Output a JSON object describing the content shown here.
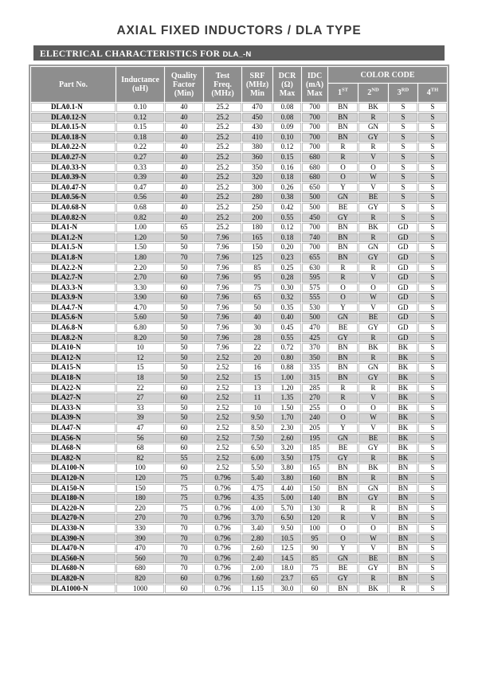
{
  "page": {
    "title": "AXIAL FIXED INDUCTORS / DLA TYPE",
    "section_label": "ELECTRICAL CHARACTERISTICS FOR ",
    "section_part": "DLA_-N"
  },
  "colors": {
    "section_bar_bg": "#5c5c5c",
    "header_cell_bg": "#8e8e8e",
    "stripe_row_bg": "#d3d3d3"
  },
  "table": {
    "headers": {
      "part_no": "Part No.",
      "inductance": "Inductance\n(uH)",
      "quality": "Quality\nFactor\n(Min)",
      "test_freq": "Test\nFreq.\n(MHz)",
      "srf": "SRF\n(MHz)\nMin",
      "dcr": "DCR\n(Ω)\nMax",
      "idc": "IDC\n(mA)\nMax",
      "color_code": "COLOR CODE",
      "color_sub": [
        {
          "base": "1",
          "sup": "ST"
        },
        {
          "base": "2",
          "sup": "ND"
        },
        {
          "base": "3",
          "sup": "RD"
        },
        {
          "base": "4",
          "sup": "TH"
        }
      ]
    },
    "rows": [
      [
        "DLA0.1-N",
        "0.10",
        "40",
        "25.2",
        "470",
        "0.08",
        "700",
        "BN",
        "BK",
        "S",
        "S"
      ],
      [
        "DLA0.12-N",
        "0.12",
        "40",
        "25.2",
        "450",
        "0.08",
        "700",
        "BN",
        "R",
        "S",
        "S"
      ],
      [
        "DLA0.15-N",
        "0.15",
        "40",
        "25.2",
        "430",
        "0.09",
        "700",
        "BN",
        "GN",
        "S",
        "S"
      ],
      [
        "DLA0.18-N",
        "0.18",
        "40",
        "25.2",
        "410",
        "0.10",
        "700",
        "BN",
        "GY",
        "S",
        "S"
      ],
      [
        "DLA0.22-N",
        "0.22",
        "40",
        "25.2",
        "380",
        "0.12",
        "700",
        "R",
        "R",
        "S",
        "S"
      ],
      [
        "DLA0.27-N",
        "0.27",
        "40",
        "25.2",
        "360",
        "0.15",
        "680",
        "R",
        "V",
        "S",
        "S"
      ],
      [
        "DLA0.33-N",
        "0.33",
        "40",
        "25.2",
        "350",
        "0.16",
        "680",
        "O",
        "O",
        "S",
        "S"
      ],
      [
        "DLA0.39-N",
        "0.39",
        "40",
        "25.2",
        "320",
        "0.18",
        "680",
        "O",
        "W",
        "S",
        "S"
      ],
      [
        "DLA0.47-N",
        "0.47",
        "40",
        "25.2",
        "300",
        "0.26",
        "650",
        "Y",
        "V",
        "S",
        "S"
      ],
      [
        "DLA0.56-N",
        "0.56",
        "40",
        "25.2",
        "280",
        "0.38",
        "500",
        "GN",
        "BE",
        "S",
        "S"
      ],
      [
        "DLA0.68-N",
        "0.68",
        "40",
        "25.2",
        "250",
        "0.42",
        "500",
        "BE",
        "GY",
        "S",
        "S"
      ],
      [
        "DLA0.82-N",
        "0.82",
        "40",
        "25.2",
        "200",
        "0.55",
        "450",
        "GY",
        "R",
        "S",
        "S"
      ],
      [
        "DLA1-N",
        "1.00",
        "65",
        "25.2",
        "180",
        "0.12",
        "700",
        "BN",
        "BK",
        "GD",
        "S"
      ],
      [
        "DLA1.2-N",
        "1.20",
        "50",
        "7.96",
        "165",
        "0.18",
        "740",
        "BN",
        "R",
        "GD",
        "S"
      ],
      [
        "DLA1.5-N",
        "1.50",
        "50",
        "7.96",
        "150",
        "0.20",
        "700",
        "BN",
        "GN",
        "GD",
        "S"
      ],
      [
        "DLA1.8-N",
        "1.80",
        "70",
        "7.96",
        "125",
        "0.23",
        "655",
        "BN",
        "GY",
        "GD",
        "S"
      ],
      [
        "DLA2.2-N",
        "2.20",
        "50",
        "7.96",
        "85",
        "0.25",
        "630",
        "R",
        "R",
        "GD",
        "S"
      ],
      [
        "DLA2.7-N",
        "2.70",
        "60",
        "7.96",
        "95",
        "0.28",
        "595",
        "R",
        "V",
        "GD",
        "S"
      ],
      [
        "DLA3.3-N",
        "3.30",
        "60",
        "7.96",
        "75",
        "0.30",
        "575",
        "O",
        "O",
        "GD",
        "S"
      ],
      [
        "DLA3.9-N",
        "3.90",
        "60",
        "7.96",
        "65",
        "0.32",
        "555",
        "O",
        "W",
        "GD",
        "S"
      ],
      [
        "DLA4.7-N",
        "4.70",
        "50",
        "7.96",
        "50",
        "0.35",
        "530",
        "Y",
        "V",
        "GD",
        "S"
      ],
      [
        "DLA5.6-N",
        "5.60",
        "50",
        "7.96",
        "40",
        "0.40",
        "500",
        "GN",
        "BE",
        "GD",
        "S"
      ],
      [
        "DLA6.8-N",
        "6.80",
        "50",
        "7.96",
        "30",
        "0.45",
        "470",
        "BE",
        "GY",
        "GD",
        "S"
      ],
      [
        "DLA8.2-N",
        "8.20",
        "50",
        "7.96",
        "28",
        "0.55",
        "425",
        "GY",
        "R",
        "GD",
        "S"
      ],
      [
        "DLA10-N",
        "10",
        "50",
        "7.96",
        "22",
        "0.72",
        "370",
        "BN",
        "BK",
        "BK",
        "S"
      ],
      [
        "DLA12-N",
        "12",
        "50",
        "2.52",
        "20",
        "0.80",
        "350",
        "BN",
        "R",
        "BK",
        "S"
      ],
      [
        "DLA15-N",
        "15",
        "50",
        "2.52",
        "16",
        "0.88",
        "335",
        "BN",
        "GN",
        "BK",
        "S"
      ],
      [
        "DLA18-N",
        "18",
        "50",
        "2.52",
        "15",
        "1.00",
        "315",
        "BN",
        "GY",
        "BK",
        "S"
      ],
      [
        "DLA22-N",
        "22",
        "60",
        "2.52",
        "13",
        "1.20",
        "285",
        "R",
        "R",
        "BK",
        "S"
      ],
      [
        "DLA27-N",
        "27",
        "60",
        "2.52",
        "11",
        "1.35",
        "270",
        "R",
        "V",
        "BK",
        "S"
      ],
      [
        "DLA33-N",
        "33",
        "50",
        "2.52",
        "10",
        "1.50",
        "255",
        "O",
        "O",
        "BK",
        "S"
      ],
      [
        "DLA39-N",
        "39",
        "50",
        "2.52",
        "9.50",
        "1.70",
        "240",
        "O",
        "W",
        "BK",
        "S"
      ],
      [
        "DLA47-N",
        "47",
        "60",
        "2.52",
        "8.50",
        "2.30",
        "205",
        "Y",
        "V",
        "BK",
        "S"
      ],
      [
        "DLA56-N",
        "56",
        "60",
        "2.52",
        "7.50",
        "2.60",
        "195",
        "GN",
        "BE",
        "BK",
        "S"
      ],
      [
        "DLA68-N",
        "68",
        "60",
        "2.52",
        "6.50",
        "3.20",
        "185",
        "BE",
        "GY",
        "BK",
        "S"
      ],
      [
        "DLA82-N",
        "82",
        "55",
        "2.52",
        "6.00",
        "3.50",
        "175",
        "GY",
        "R",
        "BK",
        "S"
      ],
      [
        "DLA100-N",
        "100",
        "60",
        "2.52",
        "5.50",
        "3.80",
        "165",
        "BN",
        "BK",
        "BN",
        "S"
      ],
      [
        "DLA120-N",
        "120",
        "75",
        "0.796",
        "5.40",
        "3.80",
        "160",
        "BN",
        "R",
        "BN",
        "S"
      ],
      [
        "DLA150-N",
        "150",
        "75",
        "0.796",
        "4.75",
        "4.40",
        "150",
        "BN",
        "GN",
        "BN",
        "S"
      ],
      [
        "DLA180-N",
        "180",
        "75",
        "0.796",
        "4.35",
        "5.00",
        "140",
        "BN",
        "GY",
        "BN",
        "S"
      ],
      [
        "DLA220-N",
        "220",
        "75",
        "0.796",
        "4.00",
        "5.70",
        "130",
        "R",
        "R",
        "BN",
        "S"
      ],
      [
        "DLA270-N",
        "270",
        "70",
        "0.796",
        "3.70",
        "6.50",
        "120",
        "R",
        "V",
        "BN",
        "S"
      ],
      [
        "DLA330-N",
        "330",
        "70",
        "0.796",
        "3.40",
        "9.50",
        "100",
        "O",
        "O",
        "BN",
        "S"
      ],
      [
        "DLA390-N",
        "390",
        "70",
        "0.796",
        "2.80",
        "10.5",
        "95",
        "O",
        "W",
        "BN",
        "S"
      ],
      [
        "DLA470-N",
        "470",
        "70",
        "0.796",
        "2.60",
        "12.5",
        "90",
        "Y",
        "V",
        "BN",
        "S"
      ],
      [
        "DLA560-N",
        "560",
        "70",
        "0.796",
        "2.40",
        "14.5",
        "85",
        "GN",
        "BE",
        "BN",
        "S"
      ],
      [
        "DLA680-N",
        "680",
        "70",
        "0.796",
        "2.00",
        "18.0",
        "75",
        "BE",
        "GY",
        "BN",
        "S"
      ],
      [
        "DLA820-N",
        "820",
        "60",
        "0.796",
        "1.60",
        "23.7",
        "65",
        "GY",
        "R",
        "BN",
        "S"
      ],
      [
        "DLA1000-N",
        "1000",
        "60",
        "0.796",
        "1.15",
        "30.0",
        "60",
        "BN",
        "BK",
        "R",
        "S"
      ]
    ]
  }
}
